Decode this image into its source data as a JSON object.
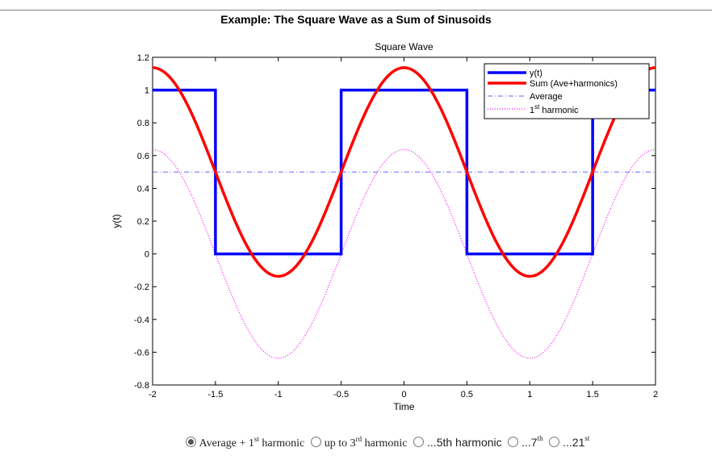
{
  "page_title": "Example: The Square Wave as a Sum of Sinusoids",
  "colors": {
    "square": "#0000ff",
    "sum": "#ff0000",
    "average": "#3333ff",
    "harmonic": "#ff00ff"
  },
  "chart_data": {
    "type": "line",
    "title": "Square Wave",
    "xlabel": "Time",
    "ylabel": "y(t)",
    "xlim": [
      -2,
      2
    ],
    "ylim": [
      -0.8,
      1.2
    ],
    "xticks": [
      -2,
      -1.5,
      -1,
      -0.5,
      0,
      0.5,
      1,
      1.5,
      2
    ],
    "xtick_labels": [
      "-2",
      "-1.5",
      "-1",
      "-0.5",
      "0",
      "0.5",
      "1",
      "1.5",
      "2"
    ],
    "yticks": [
      -0.8,
      -0.6,
      -0.4,
      -0.2,
      0,
      0.2,
      0.4,
      0.6,
      0.8,
      1,
      1.2
    ],
    "ytick_labels": [
      "-0.8",
      "-0.6",
      "-0.4",
      "-0.2",
      "0",
      "0.2",
      "0.4",
      "0.6",
      "0.8",
      "1",
      "1.2"
    ],
    "grid": false,
    "legend_placement": "top-right",
    "legend": [
      "y(t)",
      "Sum (Ave+harmonics)",
      "Average",
      "1",
      "st",
      " harmonic"
    ],
    "series": [
      {
        "name": "y(t)",
        "style": "solid",
        "color": "#0000ff",
        "x": [
          -2,
          -1.5,
          -1.5,
          -0.5,
          -0.5,
          0.5,
          0.5,
          1.5,
          1.5,
          2
        ],
        "y": [
          1,
          1,
          0,
          0,
          1,
          1,
          0,
          0,
          1,
          1
        ]
      },
      {
        "name": "Sum (Ave+harmonics)",
        "style": "solid",
        "color": "#ff0000",
        "formula": "0.5 + (2/pi)*cos(pi*t)",
        "average": 0.5,
        "amplitude": 0.6366
      },
      {
        "name": "Average",
        "style": "dashdot",
        "color": "#3333ff",
        "value": 0.5
      },
      {
        "name": "1st harmonic",
        "style": "dotted",
        "color": "#ff00ff",
        "formula": "(2/pi)*cos(pi*t)",
        "amplitude": 0.6366
      }
    ]
  },
  "options": [
    {
      "parts": [
        "Average + 1",
        "st",
        " harmonic"
      ],
      "checked": true
    },
    {
      "parts": [
        "up to 3",
        "rd",
        " harmonic"
      ],
      "checked": false
    },
    {
      "parts": [
        "...5th harmonic",
        "",
        ""
      ],
      "checked": false
    },
    {
      "parts": [
        "...7",
        "th",
        ""
      ],
      "checked": false
    },
    {
      "parts": [
        "...21",
        "st",
        ""
      ],
      "checked": false
    }
  ]
}
